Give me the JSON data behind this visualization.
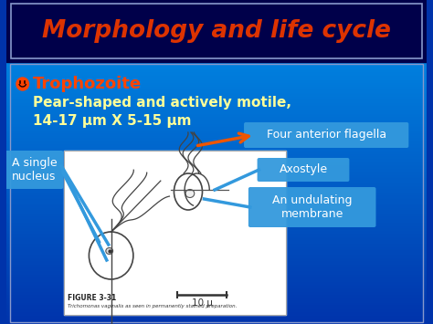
{
  "title": "Morphology and life cycle",
  "title_color": "#DD3300",
  "title_bg": "#00004A",
  "title_border": "#8899CC",
  "body_bg_top": "#0033AA",
  "body_bg_bottom": "#0077BB",
  "bullet_label": "Trophozoite",
  "bullet_color": "#FF4400",
  "bullet_symbol": "☺",
  "line1": "Pear-shaped and actively motile,",
  "line2": "14-17 μm X 5-15 μm",
  "text_color": "#FFFF99",
  "label_box_color": "#3399DD",
  "label_text_color": "white",
  "labels": [
    "Four anterior flagella",
    "Axostyle",
    "An undulating\nmembrane"
  ],
  "left_label": "A single\nnucleus",
  "figure_caption": "FIGURE 3-31",
  "figure_subcaption": "Trichomonas vaginalis as seen in permanently stained preparation.",
  "scale_label": "10 μ"
}
